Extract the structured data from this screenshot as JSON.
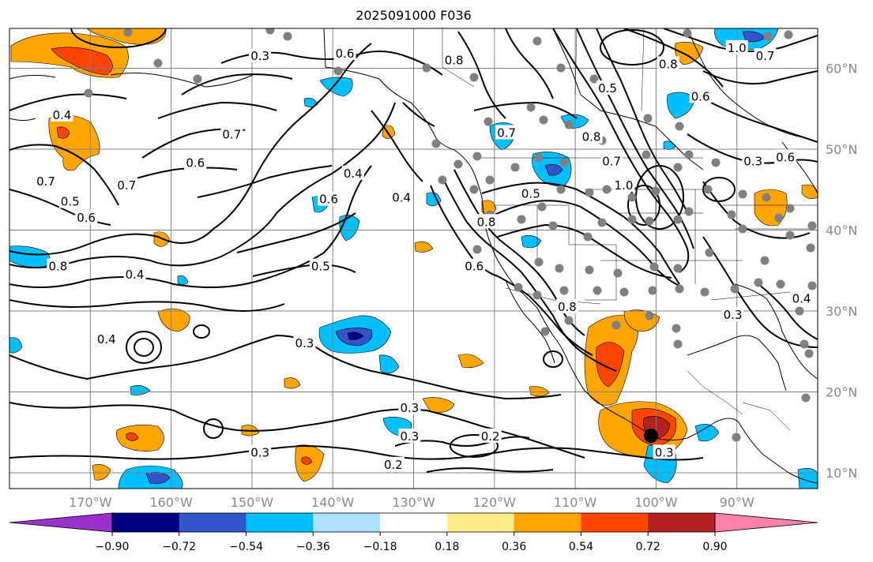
{
  "title": "2025091000 F036",
  "map": {
    "lon_ticks": [
      "170°W",
      "160°W",
      "150°W",
      "140°W",
      "130°W",
      "120°W",
      "110°W",
      "100°W",
      "90°W"
    ],
    "lat_ticks": [
      "60°N",
      "50°N",
      "40°N",
      "30°N",
      "20°N",
      "10°N"
    ],
    "contour_labels": [
      {
        "text": "0.6",
        "lon": -138.5,
        "lat": 61.8
      },
      {
        "text": "0.4",
        "lon": -173.5,
        "lat": 54.2
      },
      {
        "text": "0.7",
        "lon": -152.5,
        "lat": 51.8
      },
      {
        "text": "0.6",
        "lon": -157.0,
        "lat": 48.3
      },
      {
        "text": "0.7",
        "lon": -175.5,
        "lat": 46.0
      },
      {
        "text": "0.7",
        "lon": -165.5,
        "lat": 45.5
      },
      {
        "text": "0.5",
        "lon": -172.5,
        "lat": 43.5
      },
      {
        "text": "0.6",
        "lon": -170.5,
        "lat": 41.5
      },
      {
        "text": "0.4",
        "lon": -137.5,
        "lat": 47.0
      },
      {
        "text": "0.6",
        "lon": -140.5,
        "lat": 43.8
      },
      {
        "text": "0.4",
        "lon": -131.5,
        "lat": 44.0
      },
      {
        "text": "0.8",
        "lon": -174.0,
        "lat": 35.5
      },
      {
        "text": "0.4",
        "lon": -164.5,
        "lat": 34.5
      },
      {
        "text": "0.5",
        "lon": -141.5,
        "lat": 35.5
      },
      {
        "text": "0.6",
        "lon": -122.5,
        "lat": 35.5
      },
      {
        "text": "0.8",
        "lon": -121.0,
        "lat": 41.0
      },
      {
        "text": "0.5",
        "lon": -115.5,
        "lat": 44.5
      },
      {
        "text": "0.7",
        "lon": -118.5,
        "lat": 52.0
      },
      {
        "text": "0.8",
        "lon": -108.0,
        "lat": 51.5
      },
      {
        "text": "0.7",
        "lon": -105.5,
        "lat": 48.5
      },
      {
        "text": "1.0",
        "lon": -104.0,
        "lat": 45.5
      },
      {
        "text": "0.5",
        "lon": -106.0,
        "lat": 57.5
      },
      {
        "text": "0.8",
        "lon": -98.5,
        "lat": 60.5
      },
      {
        "text": "0.6",
        "lon": -94.5,
        "lat": 56.5
      },
      {
        "text": "1.0",
        "lon": -90.0,
        "lat": 62.5
      },
      {
        "text": "0.7",
        "lon": -86.5,
        "lat": 61.5
      },
      {
        "text": "0.8",
        "lon": -125.0,
        "lat": 61.0
      },
      {
        "text": "0.3",
        "lon": -149.0,
        "lat": 61.5
      },
      {
        "text": "0.4",
        "lon": -168.0,
        "lat": 26.5
      },
      {
        "text": "0.3",
        "lon": -143.5,
        "lat": 26.0
      },
      {
        "text": "0.3",
        "lon": -130.5,
        "lat": 18.0
      },
      {
        "text": "0.3",
        "lon": -130.5,
        "lat": 14.5
      },
      {
        "text": "0.2",
        "lon": -120.5,
        "lat": 14.5
      },
      {
        "text": "0.2",
        "lon": -132.5,
        "lat": 11.0
      },
      {
        "text": "0.3",
        "lon": -149.0,
        "lat": 12.5
      },
      {
        "text": "0.3",
        "lon": -99.0,
        "lat": 12.5
      },
      {
        "text": "0.8",
        "lon": -111.0,
        "lat": 30.5
      },
      {
        "text": "0.3",
        "lon": -90.5,
        "lat": 29.5
      },
      {
        "text": "0.3",
        "lon": -88.0,
        "lat": 48.5
      },
      {
        "text": "0.6",
        "lon": -84.0,
        "lat": 49.0
      },
      {
        "text": "0.4",
        "lon": -82.0,
        "lat": 31.5
      }
    ],
    "colors": {
      "land": "#000000",
      "contour": "#000000",
      "grid": "#808080",
      "marker": "#808080",
      "storm": "#000000"
    }
  },
  "colorbar": {
    "labels": [
      "−0.90",
      "−0.72",
      "−0.54",
      "−0.36",
      "−0.18",
      "0.18",
      "0.36",
      "0.54",
      "0.72",
      "0.90"
    ],
    "colors": [
      "#9932cc",
      "#000080",
      "#3355cc",
      "#00bfff",
      "#afe0ff",
      "#ffffff",
      "#ffec8b",
      "#ffa500",
      "#ff4500",
      "#b22222",
      "#ff82ab"
    ]
  }
}
